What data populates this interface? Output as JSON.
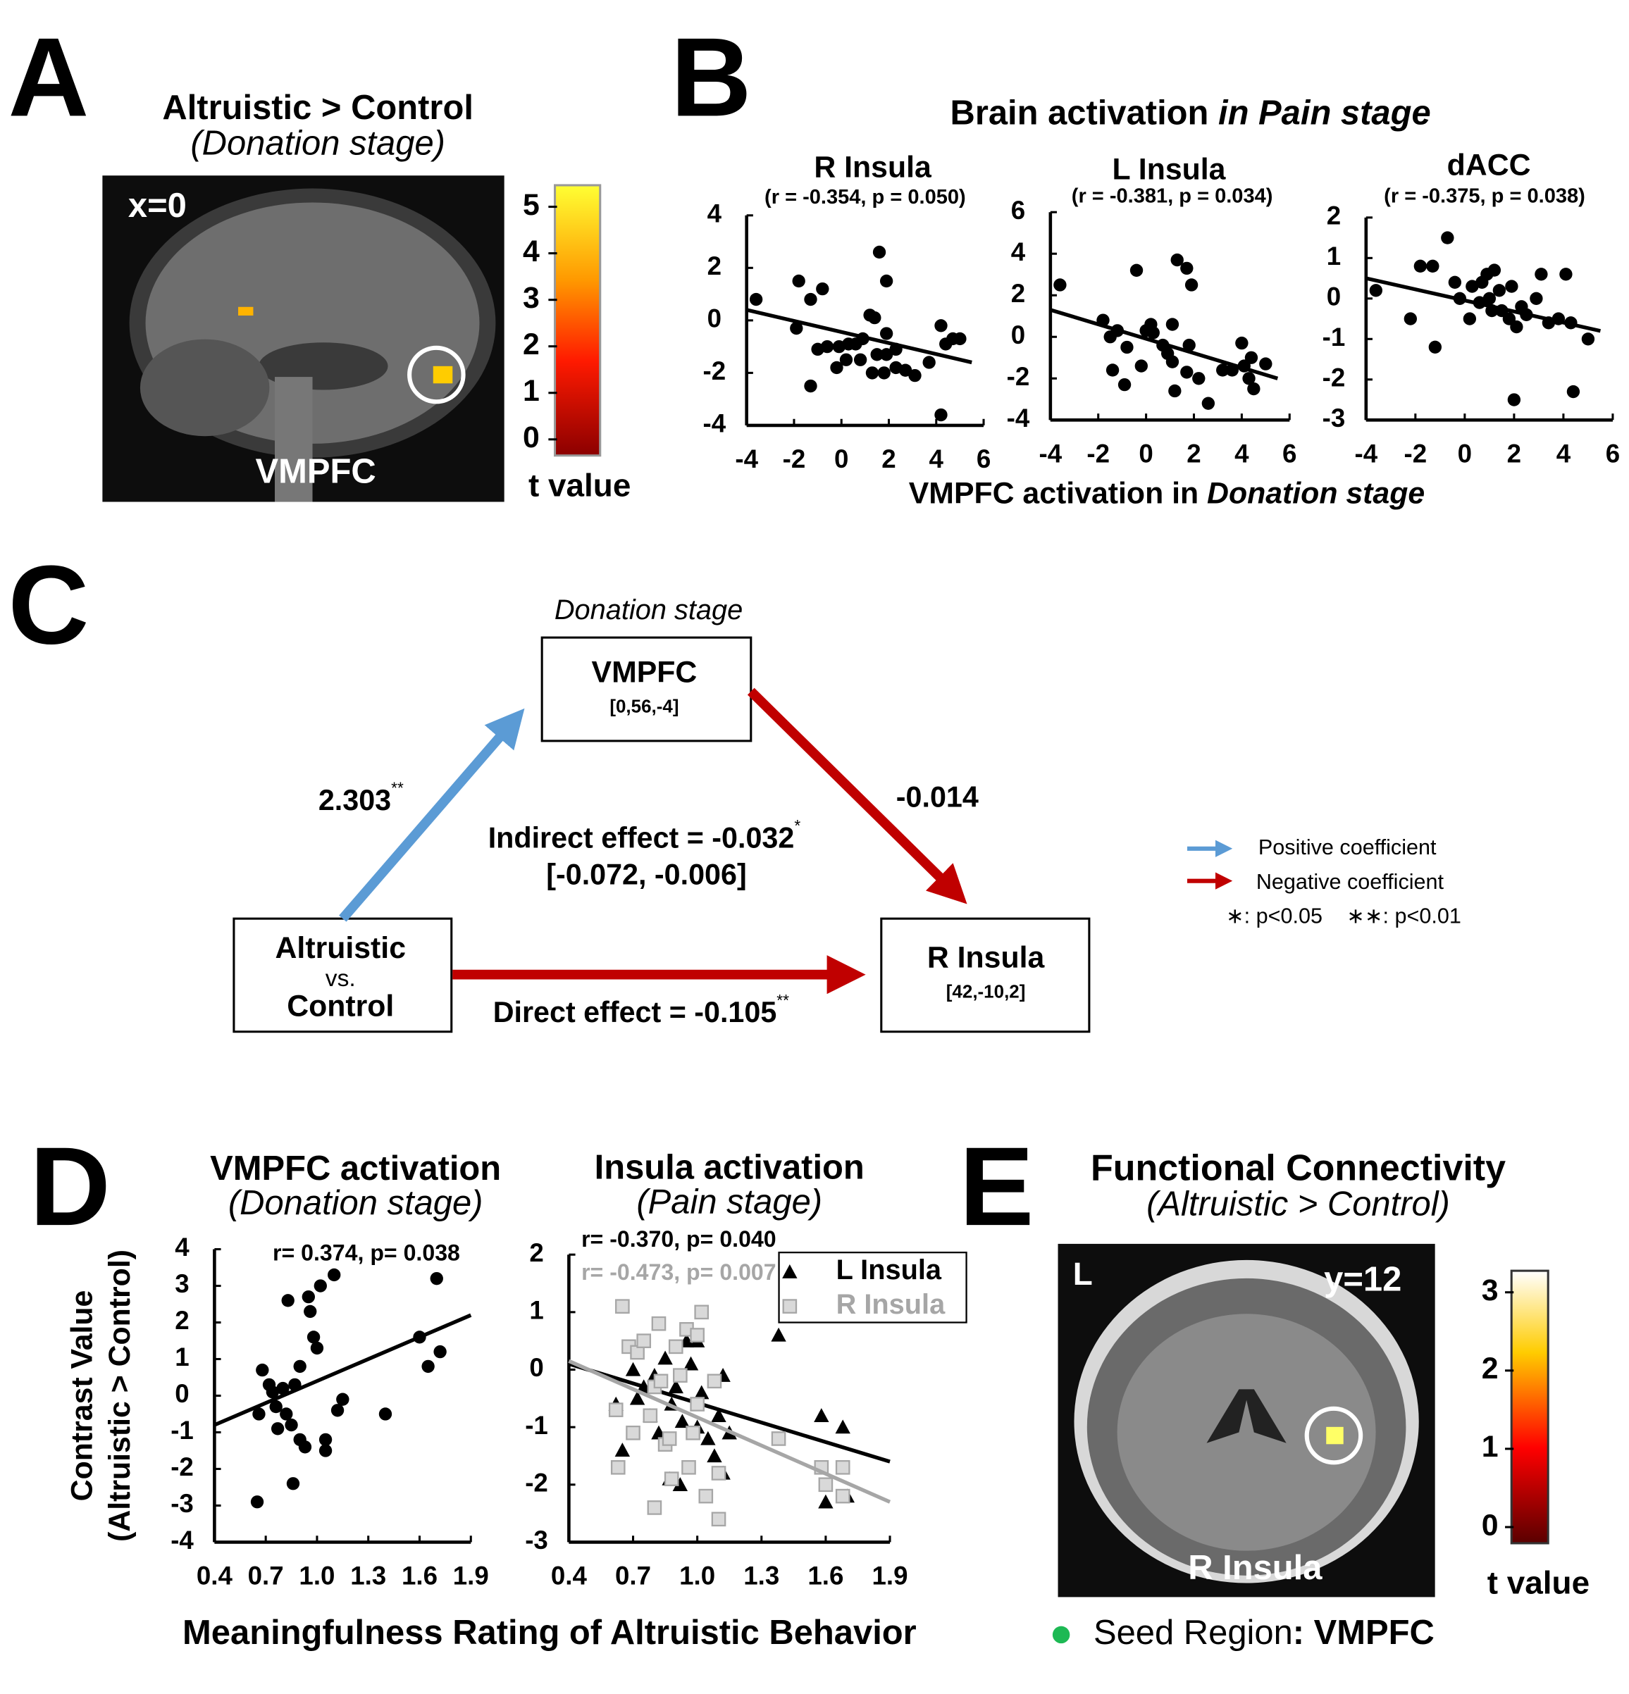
{
  "panel_A": {
    "label": "A",
    "title": "Altruistic > Control",
    "subtitle": "(Donation stage)",
    "slice": "x=0",
    "region": "VMPFC",
    "colorbar": {
      "range": [
        0,
        5
      ],
      "ticks": [
        0,
        1,
        2,
        3,
        4,
        5
      ],
      "label": "t value"
    }
  },
  "panel_B": {
    "label": "B",
    "title_parts": [
      "Brain activation ",
      "in Pain stage"
    ],
    "xlabel_parts": [
      "VMPFC activation in ",
      "Donation stage"
    ]
  },
  "chart_data": [
    {
      "type": "scatter",
      "title": "R Insula",
      "subtitle": "(r = -0.354, p = 0.050)",
      "xlim": [
        -4,
        6
      ],
      "ylim": [
        -4,
        4
      ],
      "xticks": [
        -4,
        -2,
        0,
        2,
        4,
        6
      ],
      "yticks": [
        -4,
        -2,
        0,
        2,
        4
      ],
      "x": [
        -3.6,
        -1.8,
        -1.3,
        -0.8,
        -1.9,
        -1.0,
        -0.6,
        -0.1,
        0.3,
        0.6,
        0.9,
        1.2,
        1.4,
        1.6,
        1.9,
        1.9,
        0.8,
        -0.2,
        1.5,
        1.9,
        1.8,
        1.3,
        2.3,
        2.7,
        3.1,
        3.7,
        4.2,
        4.4,
        4.7,
        5.0,
        -1.3,
        4.2,
        0.2,
        2.3
      ],
      "values": [
        0.8,
        1.5,
        0.8,
        1.2,
        -0.3,
        -1.1,
        -1.0,
        -1.0,
        -0.9,
        -0.9,
        -0.7,
        0.2,
        0.1,
        2.6,
        1.5,
        -0.5,
        -1.5,
        -1.8,
        -1.3,
        -1.3,
        -2.0,
        -2.0,
        -1.8,
        -1.9,
        -2.1,
        -1.6,
        -0.2,
        -0.9,
        -0.7,
        -0.7,
        -2.5,
        -3.6,
        -1.5,
        -1.1
      ],
      "color": "#000000",
      "marker": "circle",
      "trend": {
        "x": [
          -4,
          5.5
        ],
        "values": [
          0.4,
          -1.6
        ]
      }
    },
    {
      "type": "scatter",
      "title": "L Insula",
      "subtitle": "(r = -0.381, p = 0.034)",
      "xlim": [
        -4,
        6
      ],
      "ylim": [
        -4,
        6
      ],
      "xticks": [
        -4,
        -2,
        0,
        2,
        4,
        6
      ],
      "yticks": [
        -4,
        -2,
        0,
        2,
        4,
        6
      ],
      "x": [
        -3.6,
        -1.8,
        -1.5,
        -1.2,
        -0.8,
        -1.4,
        -0.9,
        -0.4,
        0.2,
        0.3,
        0.7,
        0.9,
        1.1,
        1.1,
        1.3,
        1.7,
        1.9,
        1.8,
        1.7,
        2.2,
        1.2,
        2.6,
        3.2,
        3.6,
        4.0,
        4.1,
        4.4,
        4.5,
        4.3,
        5.0,
        0.0,
        -0.2
      ],
      "values": [
        2.5,
        0.8,
        0,
        0.3,
        -0.5,
        -1.6,
        -2.3,
        3.2,
        0.6,
        0.2,
        -0.4,
        -0.8,
        -1.2,
        0.6,
        3.7,
        3.3,
        2.5,
        -0.4,
        -1.7,
        -2.0,
        -2.6,
        -3.2,
        -1.6,
        -1.6,
        -0.3,
        -1.4,
        -1.0,
        -2.5,
        -2.0,
        -1.3,
        0.3,
        -1.4
      ],
      "color": "#000000",
      "marker": "circle",
      "trend": {
        "x": [
          -4,
          5.5
        ],
        "values": [
          1.3,
          -2.0
        ]
      }
    },
    {
      "type": "scatter",
      "title": "dACC",
      "subtitle": "(r = -0.375, p = 0.038)",
      "xlim": [
        -4,
        6
      ],
      "ylim": [
        -3,
        2
      ],
      "xticks": [
        -4,
        -2,
        0,
        2,
        4,
        6
      ],
      "yticks": [
        -3,
        -2,
        -1,
        0,
        1,
        2
      ],
      "x": [
        -3.6,
        -2.2,
        -1.8,
        -1.3,
        -1.2,
        -0.7,
        -0.4,
        -0.2,
        0.2,
        0.3,
        0.7,
        0.9,
        1.0,
        1.1,
        1.2,
        1.4,
        1.5,
        1.8,
        1.9,
        2.1,
        2.3,
        2.5,
        2.9,
        3.1,
        3.4,
        3.8,
        4.1,
        4.3,
        4.4,
        5.0,
        2.0,
        0.6
      ],
      "values": [
        0.2,
        -0.5,
        0.8,
        0.8,
        -1.2,
        1.5,
        0.4,
        0,
        -0.5,
        0.3,
        0.4,
        0.6,
        0,
        -0.3,
        0.7,
        0.2,
        -0.3,
        -0.5,
        0.3,
        -0.7,
        -0.2,
        -0.4,
        0,
        0.6,
        -0.6,
        -0.5,
        0.6,
        -0.6,
        -2.3,
        -1.0,
        -2.5,
        -0.1
      ],
      "color": "#000000",
      "marker": "circle",
      "trend": {
        "x": [
          -4,
          5.5
        ],
        "values": [
          0.5,
          -0.8
        ]
      }
    },
    {
      "type": "scatter",
      "title": "VMPFC activation",
      "subtitle": "(Donation stage)",
      "xlim": [
        0.4,
        1.9
      ],
      "ylim": [
        -4,
        4
      ],
      "xticks": [
        0.4,
        0.7,
        {
          "value": 1,
          "label": "1.0"
        },
        1.3,
        1.6,
        1.9
      ],
      "yticks": [
        -4,
        -3,
        -2,
        -1,
        0,
        1,
        2,
        3,
        4
      ],
      "x": [
        0.65,
        0.66,
        0.68,
        0.72,
        0.74,
        0.76,
        0.77,
        0.8,
        0.82,
        0.83,
        0.85,
        0.86,
        0.87,
        0.9,
        0.9,
        0.93,
        0.95,
        0.96,
        0.98,
        1.0,
        1.02,
        1.05,
        1.05,
        1.1,
        1.12,
        1.15,
        1.4,
        1.6,
        1.65,
        1.7,
        1.72
      ],
      "values": [
        -2.9,
        -0.5,
        0.7,
        0.3,
        0.1,
        -0.3,
        -0.9,
        0.2,
        -0.5,
        2.6,
        -0.8,
        -2.4,
        0.3,
        0.8,
        -1.2,
        -1.4,
        2.7,
        2.3,
        1.6,
        1.3,
        3.0,
        -1.2,
        -1.5,
        3.3,
        -0.4,
        -0.1,
        -0.5,
        1.6,
        0.8,
        3.2,
        1.2
      ],
      "color": "#000000",
      "marker": "circle",
      "annotation": "r= 0.374, p= 0.038",
      "trend": {
        "x": [
          0.4,
          1.9
        ],
        "values": [
          -0.8,
          2.2
        ]
      }
    },
    {
      "type": "scatter",
      "title": "Insula activation",
      "subtitle": "(Pain stage)",
      "xlim": [
        0.4,
        1.9
      ],
      "ylim": [
        -3,
        2
      ],
      "xticks": [
        0.4,
        0.7,
        {
          "value": 1,
          "label": "1.0"
        },
        1.3,
        1.6,
        1.9
      ],
      "yticks": [
        -3,
        -2,
        -1,
        0,
        1,
        2
      ],
      "legend": "upper right",
      "series": [
        {
          "name": "L Insula",
          "color": "#000000",
          "marker": "triangle",
          "annotation": "r= -0.370, p= 0.040",
          "x": [
            0.62,
            0.65,
            0.7,
            0.72,
            0.75,
            0.78,
            0.8,
            0.82,
            0.85,
            0.87,
            0.88,
            0.9,
            0.92,
            0.93,
            0.95,
            0.97,
            1.0,
            1.0,
            1.02,
            1.05,
            1.08,
            1.1,
            1.12,
            1.15,
            1.38,
            1.58,
            1.6,
            1.68,
            1.7,
            1.12
          ],
          "values": [
            -0.6,
            -1.4,
            0,
            -0.5,
            -0.3,
            -0.8,
            -0.1,
            -1.1,
            0.2,
            -1.9,
            -0.6,
            -0.3,
            -2.0,
            -0.9,
            0.5,
            0.1,
            0.5,
            -1.0,
            -0.4,
            -1.2,
            -1.5,
            -0.8,
            -0.1,
            -1.1,
            0.6,
            -0.8,
            -2.3,
            -1.0,
            -2.2,
            -1.8
          ],
          "trend": {
            "x": [
              0.4,
              1.9
            ],
            "values": [
              0.1,
              -1.6
            ]
          }
        },
        {
          "name": "R Insula",
          "color": "#a6a6a6",
          "marker": "square",
          "annotation": "r= -0.473, p= 0.007",
          "x": [
            0.62,
            0.63,
            0.65,
            0.68,
            0.7,
            0.72,
            0.75,
            0.78,
            0.8,
            0.82,
            0.83,
            0.85,
            0.87,
            0.88,
            0.9,
            0.92,
            0.95,
            0.96,
            0.98,
            1.0,
            1.0,
            1.02,
            1.04,
            1.08,
            1.1,
            1.1,
            1.38,
            1.58,
            1.6,
            1.68,
            1.68,
            0.8
          ],
          "values": [
            -0.7,
            -1.7,
            1.1,
            0.4,
            -1.1,
            0.3,
            0.5,
            -0.8,
            -0.3,
            0.8,
            -0.2,
            -1.3,
            -1.2,
            -1.9,
            0.4,
            -0.1,
            0.7,
            -1.7,
            -1.1,
            0.6,
            -0.6,
            1.0,
            -2.2,
            -0.2,
            -2.6,
            -1.8,
            -1.2,
            -1.7,
            -2.0,
            -1.7,
            -2.2,
            -2.4
          ],
          "trend": {
            "x": [
              0.4,
              1.9
            ],
            "values": [
              0.15,
              -2.3
            ]
          }
        }
      ]
    }
  ],
  "panel_C": {
    "label": "C",
    "stage": "Donation stage",
    "nodes": [
      {
        "lines": [
          "VMPFC"
        ],
        "coords": "[0,56,-4]"
      },
      {
        "lines": [
          "Altruistic",
          "vs.",
          "Control"
        ]
      },
      {
        "lines": [
          "R Insula"
        ],
        "coords": "[42,-10,2]"
      }
    ],
    "paths": [
      {
        "text": "2.303",
        "sig": "**"
      },
      {
        "text": "-0.014"
      },
      {
        "text": "Indirect effect = -0.032",
        "sig": "*",
        "ci": "[-0.072, -0.006]"
      },
      {
        "text": "Direct effect = -0.105",
        "sig": "**"
      }
    ],
    "legend": [
      "Positive coefficient",
      "Negative coefficient"
    ],
    "significance": [
      "∗: p<0.05",
      "∗∗: p<0.01"
    ]
  },
  "panel_D": {
    "label": "D",
    "ylabel_lines": [
      "Contrast Value",
      "(Altruistic > Control)"
    ],
    "xlabel": "Meaningfulness Rating of Altruistic Behavior"
  },
  "panel_E": {
    "label": "E",
    "title": "Functional Connectivity",
    "subtitle": "(Altruistic > Control)",
    "side": "L",
    "slice": "y=12",
    "region": "R Insula",
    "colorbar": {
      "range": [
        0,
        3
      ],
      "ticks": [
        0,
        1,
        2,
        3
      ],
      "label": "t value"
    },
    "seed_parts": [
      "Seed Region",
      ": VMPFC"
    ]
  }
}
